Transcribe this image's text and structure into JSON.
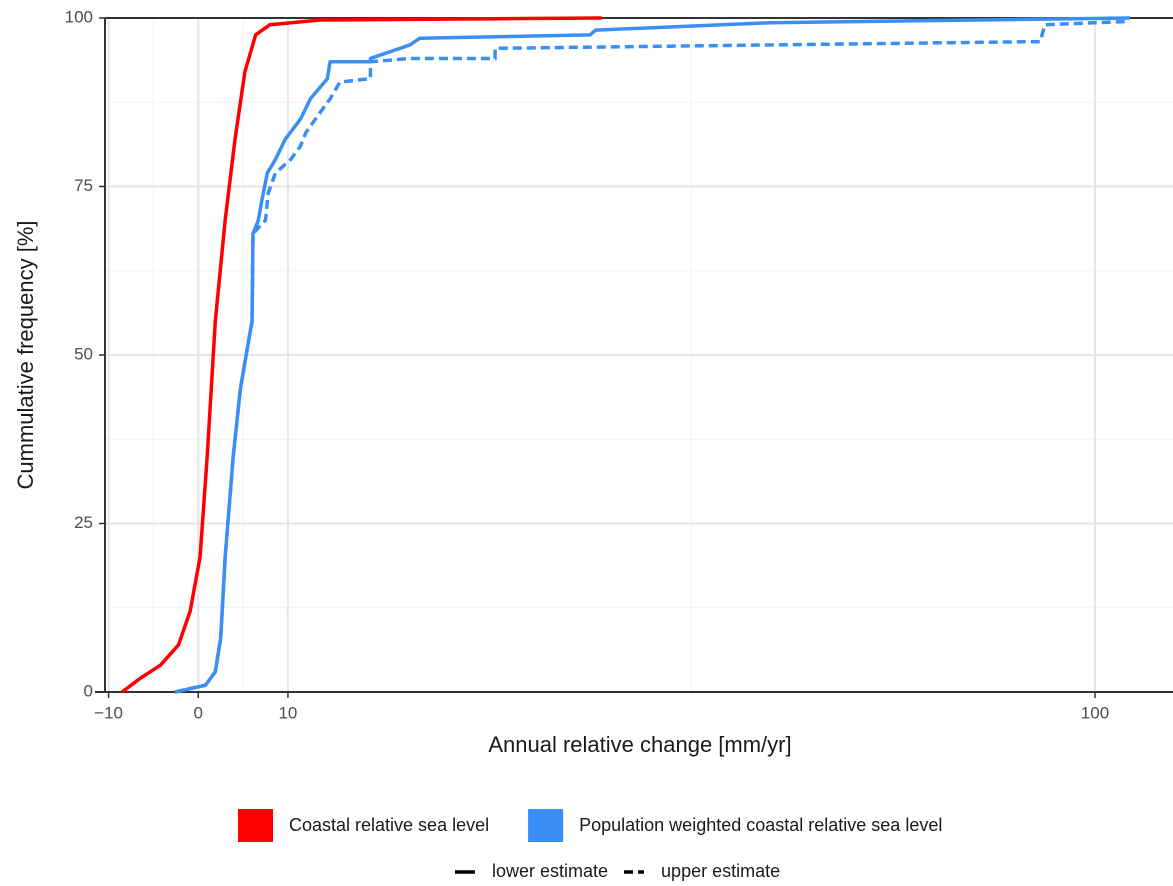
{
  "chart_data": {
    "type": "line",
    "xlabel": "Annual relative change [mm/yr]",
    "ylabel": "Cummulative frequency [%]",
    "xlim": [
      -10.4,
      108.7
    ],
    "ylim": [
      0,
      100
    ],
    "xticks": [
      {
        "value": -10,
        "label": "−10"
      },
      0,
      10,
      100
    ],
    "yticks": [
      0,
      25,
      50,
      75,
      100
    ],
    "xminor": [
      -5,
      5,
      55
    ],
    "yminor": [
      12.5,
      37.5,
      62.5,
      87.5
    ],
    "grid": true,
    "legend": "bottom",
    "series": [
      {
        "name": "Coastal relative sea level",
        "estimate": "lower estimate",
        "color": "#ff0000",
        "dash": "solid",
        "x": [
          -8.5,
          -6.5,
          -4.2,
          -2.2,
          -0.9,
          0.2,
          1.0,
          1.9,
          3.0,
          4.1,
          5.2,
          6.4,
          8.0,
          13.6,
          45
        ],
        "values": [
          0,
          2,
          4,
          7,
          12,
          20,
          35,
          55,
          70,
          82,
          92,
          97.5,
          99,
          99.7,
          100
        ]
      },
      {
        "name": "Population weighted coastal relative sea level",
        "estimate": "lower estimate",
        "color": "#3a8ff5",
        "dash": "solid",
        "x": [
          -2.6,
          0.8,
          1.9,
          2.5,
          3.0,
          3.9,
          4.7,
          5.6,
          6.0,
          6.1,
          6.7,
          7.1,
          7.7,
          8.6,
          9.7,
          11.4,
          12.5,
          14.4,
          14.7,
          19.2,
          19.2,
          23.6,
          24.7,
          43.7,
          44.3,
          63.8,
          103.9
        ],
        "values": [
          0,
          1,
          3,
          8,
          20,
          35,
          45,
          52,
          55,
          68,
          70,
          73,
          77,
          79,
          82,
          85,
          88,
          91,
          93.5,
          93.5,
          94,
          96,
          97,
          97.5,
          98.2,
          99.3,
          100
        ]
      },
      {
        "name": "Population weighted coastal relative sea level",
        "estimate": "upper estimate",
        "color": "#3a8ff5",
        "dash": "dashed",
        "x": [
          -2.6,
          0.8,
          1.9,
          2.5,
          3.0,
          3.9,
          4.7,
          5.6,
          6.0,
          6.1,
          7.5,
          7.8,
          8.6,
          10.3,
          11.4,
          12.0,
          13.6,
          14.7,
          15.8,
          19.2,
          19.2,
          23.6,
          33.1,
          33.1,
          93.9,
          94.4,
          103.9
        ],
        "values": [
          0,
          1,
          3,
          8,
          20,
          35,
          45,
          52,
          55,
          68,
          70,
          74,
          77,
          79,
          81,
          83,
          86,
          88,
          90.5,
          91,
          93.5,
          94,
          94,
          95.5,
          96.5,
          99,
          99.5
        ]
      }
    ]
  }
}
